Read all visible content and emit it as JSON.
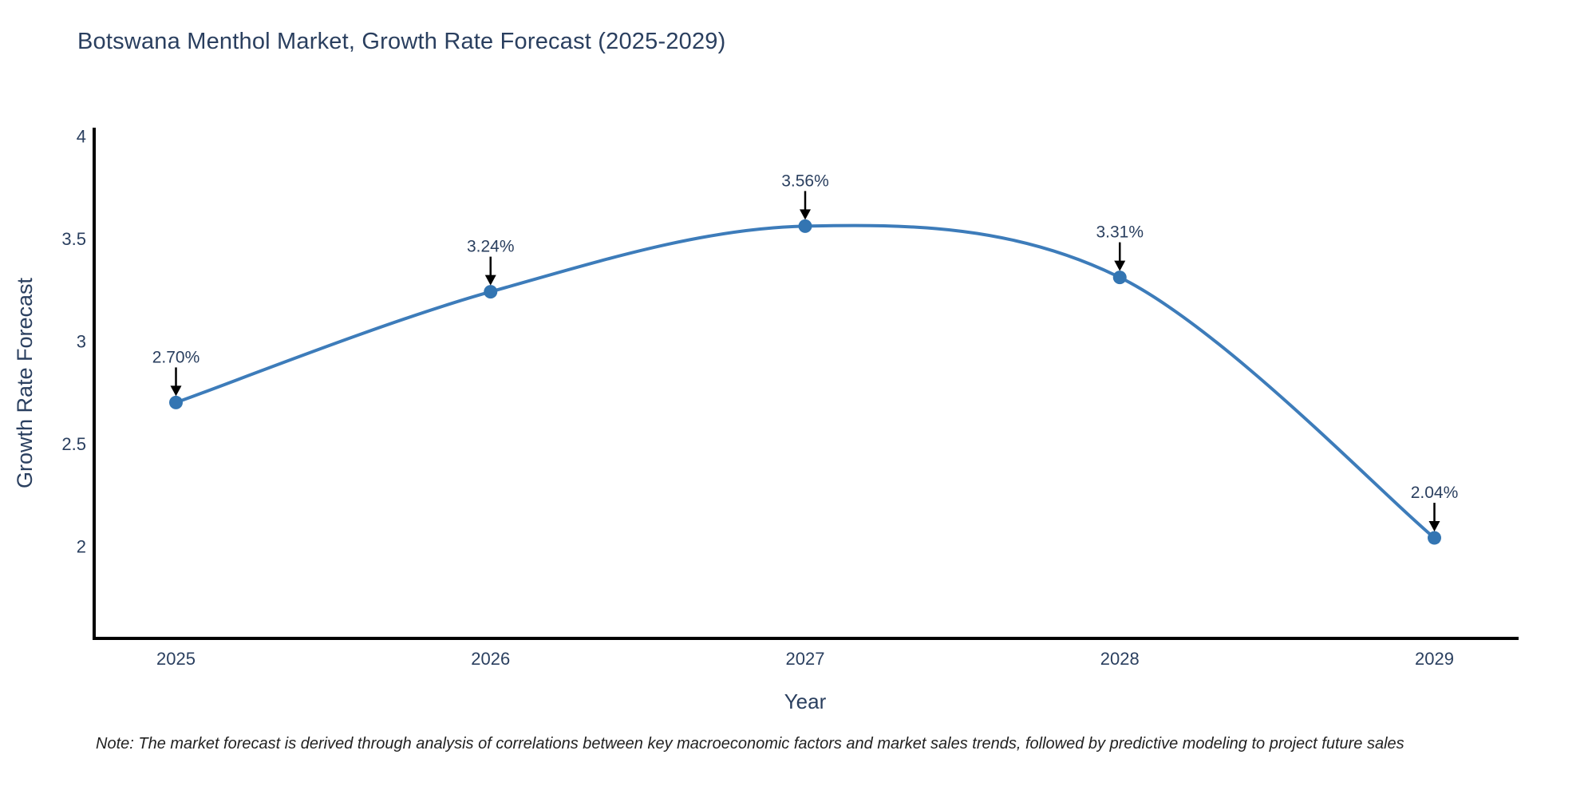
{
  "page": {
    "note": "Note: The market forecast is derived through analysis of correlations between key macroeconomic factors and market sales trends, followed by predictive modeling to project future sales"
  },
  "chart_data": {
    "type": "line",
    "title": "Botswana Menthol Market, Growth Rate Forecast (2025-2029)",
    "xlabel": "Year",
    "ylabel": "Growth Rate Forecast",
    "x": [
      2025,
      2026,
      2027,
      2028,
      2029
    ],
    "values": [
      2.7,
      3.24,
      3.56,
      3.31,
      2.04
    ],
    "point_labels": [
      "2.70%",
      "3.24%",
      "3.56%",
      "3.31%",
      "2.04%"
    ],
    "x_tick_labels": [
      "2025",
      "2026",
      "2027",
      "2028",
      "2029"
    ],
    "y_ticks": [
      2,
      2.5,
      3,
      3.5,
      4
    ],
    "y_tick_labels": [
      "2",
      "2.5",
      "3",
      "3.5",
      "4"
    ],
    "xlim": [
      2024.74,
      2029.26
    ],
    "ylim": [
      1.55,
      4.04
    ],
    "grid": false,
    "legend": "none",
    "line_shape": "spline",
    "colors": {
      "line": "#3d7cba",
      "marker": "#3375b2",
      "axis": "#000000",
      "tick_label": "#2a3f5f",
      "title": "#2a3f5f",
      "axis_title": "#2a3f5f",
      "annotation_text": "#2a3f5f",
      "annotation_arrow": "#000000",
      "note_text": "#222222",
      "background": "#ffffff"
    }
  }
}
